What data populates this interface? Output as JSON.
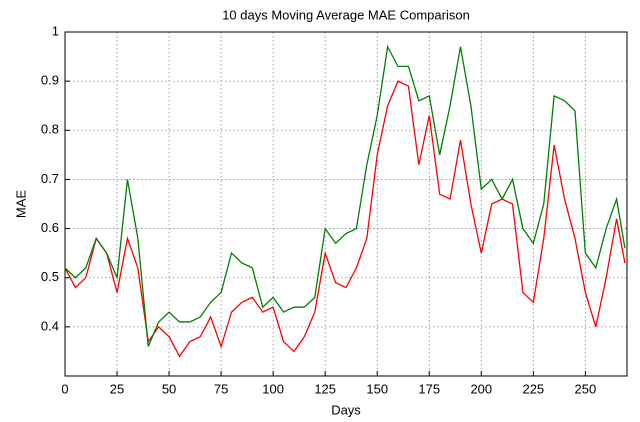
{
  "chart_data": {
    "type": "line",
    "title": "10 days Moving Average MAE Comparison",
    "x_label": "Days",
    "y_label": "MAE",
    "x": [
      0,
      5,
      10,
      15,
      20,
      25,
      30,
      35,
      40,
      45,
      50,
      55,
      60,
      65,
      70,
      75,
      80,
      85,
      90,
      95,
      100,
      105,
      110,
      115,
      120,
      125,
      130,
      135,
      140,
      145,
      150,
      155,
      160,
      165,
      170,
      175,
      180,
      185,
      190,
      195,
      200,
      205,
      210,
      215,
      220,
      225,
      230,
      235,
      240,
      245,
      250,
      255,
      260,
      265,
      269
    ],
    "series": [
      {
        "color": "#008000",
        "values": [
          0.52,
          0.5,
          0.52,
          0.58,
          0.55,
          0.5,
          0.7,
          0.58,
          0.36,
          0.41,
          0.43,
          0.41,
          0.41,
          0.42,
          0.45,
          0.47,
          0.55,
          0.53,
          0.52,
          0.44,
          0.46,
          0.43,
          0.44,
          0.44,
          0.46,
          0.6,
          0.57,
          0.59,
          0.6,
          0.73,
          0.83,
          0.97,
          0.93,
          0.93,
          0.86,
          0.87,
          0.75,
          0.85,
          0.97,
          0.85,
          0.68,
          0.7,
          0.66,
          0.7,
          0.6,
          0.57,
          0.65,
          0.87,
          0.86,
          0.84,
          0.55,
          0.52,
          0.6,
          0.66,
          0.56
        ]
      },
      {
        "color": "#ff0000",
        "values": [
          0.52,
          0.48,
          0.5,
          0.58,
          0.55,
          0.47,
          0.58,
          0.52,
          0.37,
          0.4,
          0.38,
          0.34,
          0.37,
          0.38,
          0.42,
          0.36,
          0.43,
          0.45,
          0.46,
          0.43,
          0.44,
          0.37,
          0.35,
          0.38,
          0.43,
          0.55,
          0.49,
          0.48,
          0.52,
          0.58,
          0.75,
          0.85,
          0.9,
          0.89,
          0.73,
          0.83,
          0.67,
          0.66,
          0.78,
          0.65,
          0.55,
          0.65,
          0.66,
          0.65,
          0.47,
          0.45,
          0.58,
          0.77,
          0.66,
          0.58,
          0.47,
          0.4,
          0.5,
          0.62,
          0.53
        ]
      }
    ],
    "xlim": [
      0,
      270
    ],
    "xticks": [
      0,
      25,
      50,
      75,
      100,
      125,
      150,
      175,
      200,
      225,
      250
    ],
    "ylim": [
      0.3,
      1
    ],
    "yticks": [
      0.4,
      0.5,
      0.6,
      0.7,
      0.8,
      0.9,
      1
    ],
    "grid": true
  }
}
